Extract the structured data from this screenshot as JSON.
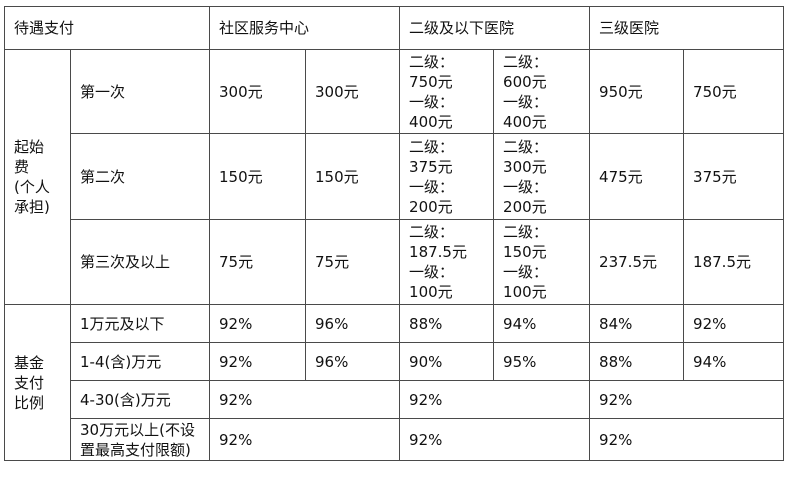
{
  "header": {
    "col1": "待遇支付",
    "col2": "社区服务中心",
    "col3": "二级及以下医院",
    "col4": "三级医院"
  },
  "qifei": {
    "group_label": [
      "起始",
      "费",
      "(个人",
      "承担)"
    ],
    "rows": [
      {
        "label": "第一次",
        "community_a": "300元",
        "community_b": "300元",
        "second_a": [
          "二级：",
          "750元",
          "一级：",
          "400元"
        ],
        "second_b": [
          "二级：",
          "600元",
          "一级：",
          "400元"
        ],
        "third_a": "950元",
        "third_b": "750元"
      },
      {
        "label": "第二次",
        "community_a": "150元",
        "community_b": "150元",
        "second_a": [
          "二级：",
          "375元",
          "一级：",
          "200元"
        ],
        "second_b": [
          "二级：",
          "300元",
          "一级：",
          "200元"
        ],
        "third_a": "475元",
        "third_b": "375元"
      },
      {
        "label": "第三次及以上",
        "community_a": "75元",
        "community_b": "75元",
        "second_a": [
          "二级：",
          "187.5元",
          "一级：",
          "100元"
        ],
        "second_b": [
          "二级：",
          "150元",
          "一级：",
          "100元"
        ],
        "third_a": "237.5元",
        "third_b": "187.5元"
      }
    ]
  },
  "fund": {
    "group_label": [
      "基金",
      "支付",
      "比例"
    ],
    "rows": [
      {
        "label": "1万元及以下",
        "c1": "92%",
        "c2": "96%",
        "s1": "88%",
        "s2": "94%",
        "t1": "84%",
        "t2": "92%"
      },
      {
        "label": "1-4(含)万元",
        "c1": "92%",
        "c2": "96%",
        "s1": "90%",
        "s2": "95%",
        "t1": "88%",
        "t2": "94%"
      },
      {
        "label": "4-30(含)万元",
        "c": "92%",
        "s": "92%",
        "t": "92%"
      },
      {
        "label": [
          "30万元以上(不设",
          "置最高支付限额)"
        ],
        "c": "92%",
        "s": "92%",
        "t": "92%"
      }
    ]
  }
}
